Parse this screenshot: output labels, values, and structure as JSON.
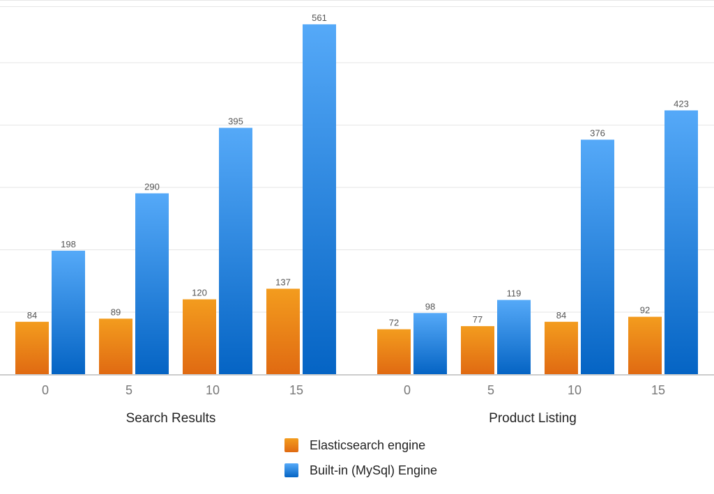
{
  "chart_data": {
    "type": "bar",
    "groups": [
      {
        "label": "Search Results",
        "categories": [
          "0",
          "5",
          "10",
          "15"
        ],
        "series": [
          {
            "name": "Elasticsearch engine",
            "values": [
              84,
              89,
              120,
              137
            ]
          },
          {
            "name": "Built-in (MySql) Engine",
            "values": [
              198,
              290,
              395,
              561
            ]
          }
        ]
      },
      {
        "label": "Product Listing",
        "categories": [
          "0",
          "5",
          "10",
          "15"
        ],
        "series": [
          {
            "name": "Elasticsearch engine",
            "values": [
              72,
              77,
              84,
              92
            ]
          },
          {
            "name": "Built-in (MySql) Engine",
            "values": [
              98,
              119,
              376,
              423
            ]
          }
        ]
      }
    ],
    "ylim": [
      0,
      600
    ],
    "grid": true,
    "legend_position": "bottom-center",
    "colors": {
      "Elasticsearch engine": [
        "#F39C1E",
        "#E06A12"
      ],
      "Built-in (MySql) Engine": [
        "#55A9F8",
        "#0564C4"
      ]
    }
  },
  "legend": [
    {
      "label": "Elasticsearch engine",
      "color": "#EC8519"
    },
    {
      "label": "Built-in (MySql) Engine",
      "color": "#2C86DE"
    }
  ]
}
